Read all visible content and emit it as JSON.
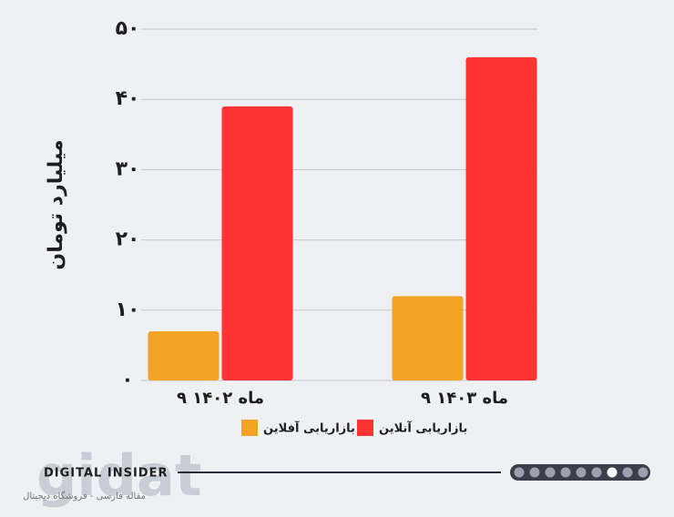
{
  "chart_data": {
    "type": "bar",
    "y_label": "میلیارد تومان",
    "categories": [
      "۹ ماه ۱۴۰۲",
      "۹ ماه ۱۴۰۳"
    ],
    "series": [
      {
        "name": "بازاریابی آفلاین",
        "color": "#f4a226",
        "values": [
          7,
          12
        ]
      },
      {
        "name": "بازاریابی آنلاین",
        "color": "#ff3333",
        "values": [
          39,
          46
        ]
      }
    ],
    "ylim": [
      0,
      50
    ],
    "yticks": [
      {
        "value": 0,
        "label": "۰"
      },
      {
        "value": 10,
        "label": "۱۰"
      },
      {
        "value": 20,
        "label": "۲۰"
      },
      {
        "value": 30,
        "label": "۳۰"
      },
      {
        "value": 40,
        "label": "۴۰"
      },
      {
        "value": 50,
        "label": "۵۰"
      }
    ],
    "grid": true
  },
  "footer": {
    "brand": "DIGITAL INSIDER",
    "watermark": "gidat",
    "tagline": "مقاله فارسی - فروشگاه دیجیتال"
  }
}
